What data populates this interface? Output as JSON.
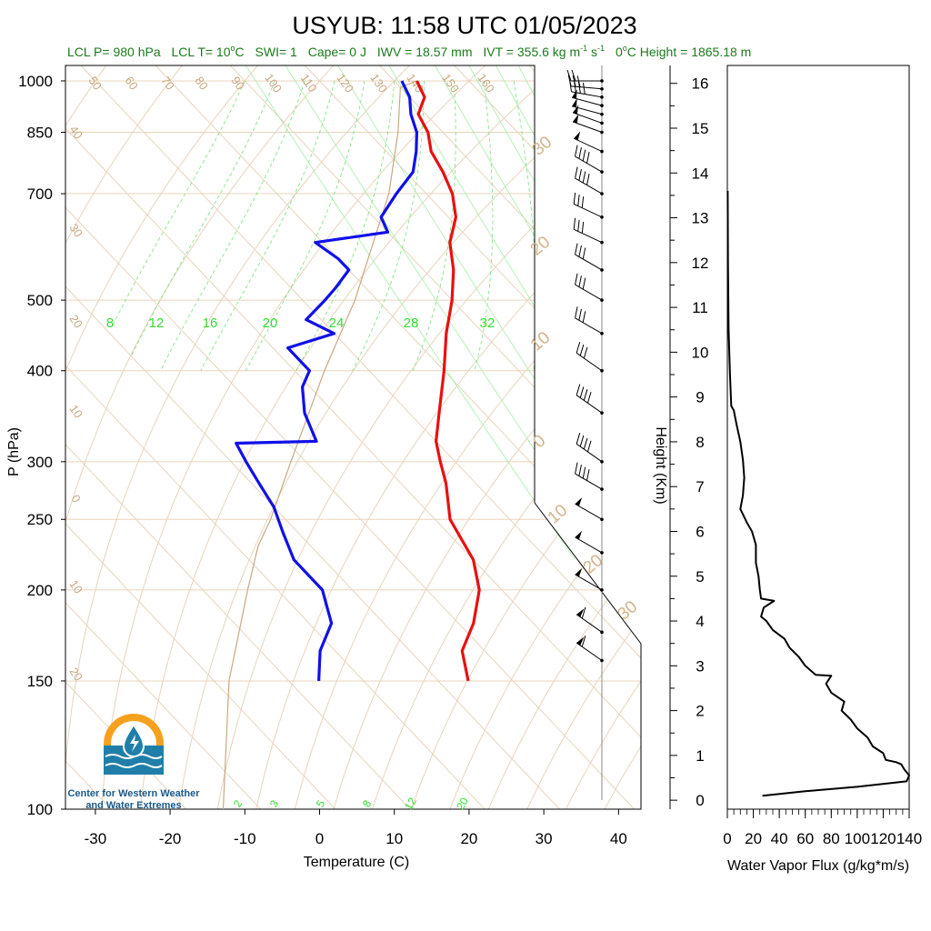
{
  "header": {
    "title": "USYUB: 11:58 UTC 01/05/2023",
    "subtitle": {
      "lcl_p": "LCL P= 980 hPa",
      "lcl_t_pre": "LCL T= 10",
      "lcl_t_unit": "C",
      "swi": "SWI= 1",
      "cape": "Cape= 0 J",
      "iwv": "IWV = 18.57 mm",
      "ivt_pre": "IVT = 355.6 kg m",
      "ivt_mid": " s",
      "sup_minus1": "-1",
      "freeze_pre": "0",
      "freeze_post": "C Height = 1865.18 m",
      "deg": "o"
    }
  },
  "logo": {
    "line1": "Center for Western Weather",
    "line2": "and Water Extremes"
  },
  "chart_data": [
    {
      "type": "line",
      "name": "skew-t",
      "xlabel": "Temperature (C)",
      "ylabel": "P (hPa)",
      "x_ticks": [
        "-30",
        "-20",
        "-10",
        "0",
        "10",
        "20",
        "30",
        "40"
      ],
      "p_ticks": [
        "100",
        "150",
        "200",
        "250",
        "300",
        "400",
        "500",
        "700",
        "850",
        "1000"
      ],
      "xlim": [
        -34,
        43
      ],
      "plim": [
        1050,
        100
      ],
      "colors": {
        "temperature": "#e81010",
        "dewpoint": "#1010e8",
        "parcel": "#c8a882",
        "mixing": "#33dd33",
        "dry": "#c8a882",
        "skew": "#e8d4bc"
      },
      "temperature": [
        [
          1000,
          13
        ],
        [
          950,
          12
        ],
        [
          900,
          9
        ],
        [
          850,
          8
        ],
        [
          800,
          6
        ],
        [
          750,
          5
        ],
        [
          700,
          3.5
        ],
        [
          650,
          1
        ],
        [
          600,
          -3
        ],
        [
          550,
          -6
        ],
        [
          500,
          -10
        ],
        [
          450,
          -15
        ],
        [
          400,
          -20
        ],
        [
          350,
          -26
        ],
        [
          320,
          -30
        ],
        [
          300,
          -32
        ],
        [
          280,
          -34
        ],
        [
          250,
          -38
        ],
        [
          220,
          -40
        ],
        [
          200,
          -43
        ],
        [
          180,
          -48
        ],
        [
          165,
          -53
        ],
        [
          150,
          -56
        ]
      ],
      "dewpoint": [
        [
          1000,
          11
        ],
        [
          950,
          10
        ],
        [
          900,
          8
        ],
        [
          850,
          6.5
        ],
        [
          800,
          4
        ],
        [
          750,
          1
        ],
        [
          700,
          -4
        ],
        [
          650,
          -9
        ],
        [
          620,
          -10
        ],
        [
          600,
          -21
        ],
        [
          570,
          -20
        ],
        [
          550,
          -20
        ],
        [
          520,
          -24
        ],
        [
          500,
          -27
        ],
        [
          470,
          -32
        ],
        [
          450,
          -30
        ],
        [
          430,
          -38
        ],
        [
          400,
          -38
        ],
        [
          380,
          -41
        ],
        [
          350,
          -44
        ],
        [
          320,
          -46
        ],
        [
          318,
          -57
        ],
        [
          300,
          -58
        ],
        [
          280,
          -59
        ],
        [
          260,
          -60
        ],
        [
          240,
          -62
        ],
        [
          220,
          -64
        ],
        [
          200,
          -64
        ],
        [
          180,
          -67
        ],
        [
          165,
          -72
        ],
        [
          150,
          -76
        ]
      ],
      "parcel": [
        [
          1000,
          13
        ],
        [
          980,
          10
        ],
        [
          850,
          4
        ],
        [
          700,
          -5
        ],
        [
          500,
          -23
        ],
        [
          400,
          -36
        ],
        [
          300,
          -52
        ],
        [
          250,
          -62
        ],
        [
          230,
          -67
        ],
        [
          200,
          -74
        ],
        [
          150,
          -88
        ],
        [
          100,
          -105
        ]
      ],
      "mixing_ratio_labels": [
        "8",
        "12",
        "16",
        "20",
        "24",
        "28",
        "32"
      ],
      "mixing_ratio_lower_labels": [
        "2",
        "3",
        "5",
        "8",
        "12",
        "20"
      ],
      "skew_labels_top": [
        "50",
        "60",
        "70",
        "80",
        "90",
        "100",
        "110",
        "120",
        "130",
        "140",
        "150",
        "160"
      ],
      "skew_labels_left": [
        "40",
        "30",
        "20",
        "10",
        "0",
        "10",
        "20"
      ],
      "skew_labels_right": [
        "30",
        "20",
        "10",
        "0",
        "10",
        "20",
        "30"
      ]
    },
    {
      "type": "line",
      "name": "water-vapor-flux",
      "xlabel": "Water Vapor Flux (g/kg*m/s)",
      "ylabel": "Height (Km)",
      "xlim": [
        0,
        140
      ],
      "ylim": [
        -0.2,
        16.4
      ],
      "x_ticks": [
        "0",
        "20",
        "40",
        "60",
        "80",
        "100",
        "120",
        "140"
      ],
      "y_ticks": [
        "0",
        "1",
        "2",
        "3",
        "4",
        "5",
        "6",
        "7",
        "8",
        "9",
        "10",
        "11",
        "12",
        "13",
        "14",
        "15",
        "16"
      ],
      "color": "#000000",
      "points": [
        [
          27,
          0.1
        ],
        [
          60,
          0.2
        ],
        [
          100,
          0.3
        ],
        [
          138,
          0.42
        ],
        [
          140,
          0.55
        ],
        [
          136,
          0.7
        ],
        [
          134,
          0.8
        ],
        [
          130,
          0.85
        ],
        [
          122,
          0.9
        ],
        [
          120,
          1.05
        ],
        [
          112,
          1.2
        ],
        [
          108,
          1.4
        ],
        [
          100,
          1.6
        ],
        [
          95,
          1.8
        ],
        [
          88,
          2.0
        ],
        [
          90,
          2.2
        ],
        [
          80,
          2.4
        ],
        [
          76,
          2.6
        ],
        [
          80,
          2.78
        ],
        [
          68,
          2.8
        ],
        [
          60,
          3.0
        ],
        [
          55,
          3.2
        ],
        [
          48,
          3.4
        ],
        [
          44,
          3.6
        ],
        [
          35,
          3.8
        ],
        [
          30,
          4.0
        ],
        [
          26,
          4.1
        ],
        [
          28,
          4.3
        ],
        [
          36,
          4.45
        ],
        [
          26,
          4.5
        ],
        [
          25,
          4.7
        ],
        [
          24,
          5.0
        ],
        [
          22,
          5.3
        ],
        [
          22,
          5.7
        ],
        [
          19,
          6.0
        ],
        [
          15,
          6.2
        ],
        [
          10,
          6.5
        ],
        [
          12,
          6.8
        ],
        [
          13,
          7.2
        ],
        [
          12,
          7.6
        ],
        [
          10,
          8.0
        ],
        [
          7,
          8.4
        ],
        [
          5,
          8.7
        ],
        [
          3,
          8.8
        ],
        [
          2,
          9.5
        ],
        [
          1,
          10.5
        ],
        [
          0.5,
          12
        ],
        [
          0.3,
          13.6
        ]
      ]
    },
    {
      "type": "scatter",
      "name": "wind-barbs",
      "levels_hpa": [
        1000,
        975,
        950,
        925,
        900,
        875,
        850,
        800,
        750,
        700,
        650,
        600,
        550,
        500,
        450,
        400,
        350,
        300,
        275,
        250,
        225,
        200,
        175,
        160
      ],
      "direction_deg": [
        270,
        275,
        280,
        285,
        285,
        290,
        290,
        295,
        300,
        300,
        295,
        295,
        300,
        300,
        300,
        305,
        305,
        305,
        300,
        300,
        300,
        300,
        305,
        305
      ],
      "speed_kt": [
        25,
        35,
        45,
        50,
        55,
        55,
        55,
        50,
        45,
        40,
        35,
        35,
        30,
        30,
        35,
        35,
        40,
        45,
        45,
        50,
        55,
        55,
        60,
        60
      ]
    }
  ]
}
